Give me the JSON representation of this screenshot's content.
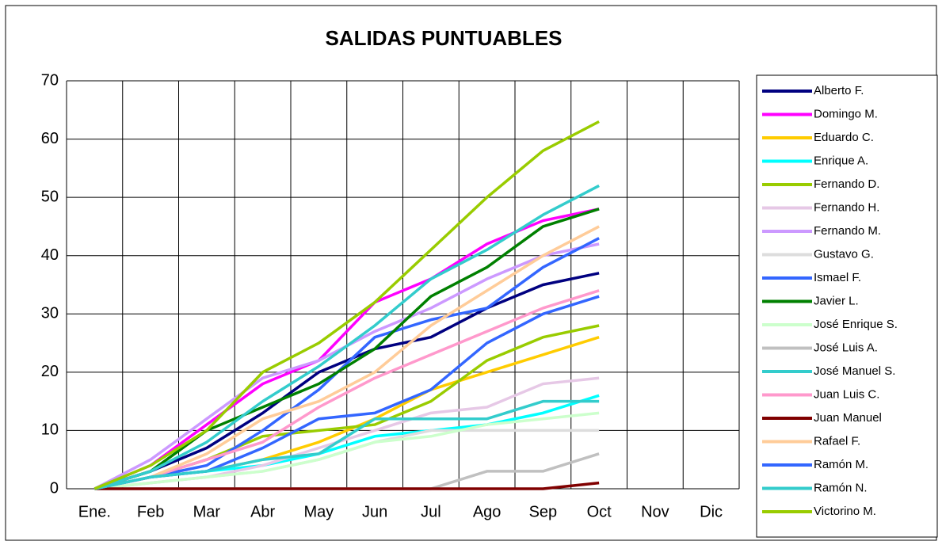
{
  "chart_data": {
    "type": "line",
    "title": "SALIDAS PUNTUABLES",
    "categories": [
      "Ene.",
      "Feb",
      "Mar",
      "Abr",
      "May",
      "Jun",
      "Jul",
      "Ago",
      "Sep",
      "Oct",
      "Nov",
      "Dic"
    ],
    "ylim": [
      0,
      70
    ],
    "yticks": [
      0,
      10,
      20,
      30,
      40,
      50,
      60,
      70
    ],
    "grid": true,
    "legend": "right",
    "series": [
      {
        "name": "Alberto F.",
        "color": "#000080",
        "values": [
          0,
          3,
          7,
          13,
          20,
          24,
          26,
          31,
          35,
          37,
          null,
          null
        ]
      },
      {
        "name": "Domingo M.",
        "color": "#ff00ff",
        "values": [
          0,
          4,
          11,
          18,
          22,
          32,
          36,
          42,
          46,
          48,
          null,
          null
        ]
      },
      {
        "name": "Eduardo C.",
        "color": "#ffcc00",
        "values": [
          0,
          2,
          3,
          5,
          8,
          12,
          17,
          20,
          23,
          26,
          null,
          null
        ]
      },
      {
        "name": "Enrique A.",
        "color": "#00ffff",
        "values": [
          0,
          2,
          3,
          4,
          6,
          9,
          10,
          11,
          13,
          16,
          null,
          null
        ]
      },
      {
        "name": "Fernando D.",
        "color": "#99cc00",
        "values": [
          0,
          2,
          5,
          9,
          10,
          11,
          15,
          22,
          26,
          28,
          null,
          null
        ]
      },
      {
        "name": "Fernando H.",
        "color": "#e6c8e6",
        "values": [
          0,
          1,
          2,
          4,
          7,
          10,
          13,
          14,
          18,
          19,
          null,
          null
        ]
      },
      {
        "name": "Fernando M.",
        "color": "#cc99ff",
        "values": [
          0,
          5,
          12,
          19,
          22,
          27,
          31,
          36,
          40,
          42,
          null,
          null
        ]
      },
      {
        "name": "Gustavo G.",
        "color": "#dddddd",
        "values": [
          0,
          1,
          2,
          3,
          5,
          8,
          10,
          10,
          10,
          10,
          null,
          null
        ]
      },
      {
        "name": "Ismael F.",
        "color": "#3366ff",
        "values": [
          0,
          2,
          4,
          10,
          17,
          26,
          29,
          31,
          38,
          43,
          null,
          null
        ]
      },
      {
        "name": "Javier L.",
        "color": "#008000",
        "values": [
          0,
          3,
          10,
          14,
          18,
          24,
          33,
          38,
          45,
          48,
          null,
          null
        ]
      },
      {
        "name": "José Enrique S.",
        "color": "#ccffcc",
        "values": [
          0,
          1,
          2,
          3,
          5,
          8,
          9,
          11,
          12,
          13,
          null,
          null
        ]
      },
      {
        "name": "José Luis A.",
        "color": "#c0c0c0",
        "values": [
          0,
          0,
          0,
          0,
          0,
          0,
          0,
          3,
          3,
          6,
          null,
          null
        ]
      },
      {
        "name": "José Manuel S.",
        "color": "#33cccc",
        "values": [
          0,
          3,
          8,
          15,
          21,
          28,
          36,
          41,
          47,
          52,
          null,
          null
        ]
      },
      {
        "name": "Juan Luis C.",
        "color": "#ff99cc",
        "values": [
          0,
          2,
          5,
          8,
          14,
          19,
          23,
          27,
          31,
          34,
          null,
          null
        ]
      },
      {
        "name": "Juan Manuel",
        "color": "#800000",
        "values": [
          0,
          0,
          0,
          0,
          0,
          0,
          0,
          0,
          0,
          1,
          null,
          null
        ]
      },
      {
        "name": "Rafael F.",
        "color": "#ffcc99",
        "values": [
          0,
          2,
          6,
          12,
          15,
          20,
          28,
          34,
          40,
          45,
          null,
          null
        ]
      },
      {
        "name": "Ramón M.",
        "color": "#3366ff",
        "values": [
          0,
          2,
          3,
          7,
          12,
          13,
          17,
          25,
          30,
          33,
          null,
          null
        ]
      },
      {
        "name": "Ramón N.",
        "color": "#33cccc",
        "values": [
          0,
          2,
          3,
          5,
          6,
          12,
          12,
          12,
          15,
          15,
          null,
          null
        ]
      },
      {
        "name": "Victorino M.",
        "color": "#99cc00",
        "values": [
          0,
          4,
          10,
          20,
          25,
          32,
          41,
          50,
          58,
          63,
          null,
          null
        ]
      }
    ]
  }
}
